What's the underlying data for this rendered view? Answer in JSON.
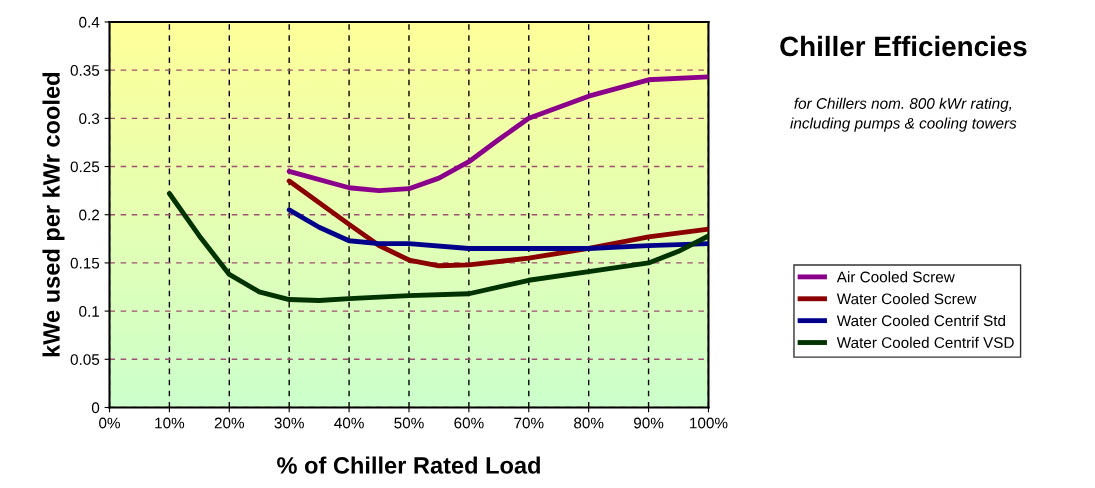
{
  "chart_data": {
    "type": "line",
    "title": "Chiller Efficiencies",
    "subtitle": "for Chillers nom. 800 kWr rating,\nincluding pumps & cooling towers",
    "xlabel": "% of Chiller Rated Load",
    "ylabel": "kWe used per kWr cooled",
    "xlim": [
      0,
      100
    ],
    "xticks": [
      {
        "value": 0,
        "label": "0%"
      },
      {
        "value": 10,
        "label": "10%"
      },
      {
        "value": 20,
        "label": "20%"
      },
      {
        "value": 30,
        "label": "30%"
      },
      {
        "value": 40,
        "label": "40%"
      },
      {
        "value": 50,
        "label": "50%"
      },
      {
        "value": 60,
        "label": "60%"
      },
      {
        "value": 70,
        "label": "70%"
      },
      {
        "value": 80,
        "label": "80%"
      },
      {
        "value": 90,
        "label": "90%"
      },
      {
        "value": 100,
        "label": "100%"
      }
    ],
    "ylim": [
      0,
      0.4
    ],
    "yticks": [
      0,
      0.05,
      0.1,
      0.15,
      0.2,
      0.25,
      0.3,
      0.35,
      0.4
    ],
    "grid": true,
    "legend": "right",
    "marker": "none",
    "line_style": "solid",
    "series": [
      {
        "name": "Air Cooled Screw",
        "color": "#8b008b",
        "x": [
          30,
          40,
          45,
          50,
          55,
          60,
          65,
          70,
          80,
          90,
          100
        ],
        "values": [
          0.245,
          0.228,
          0.225,
          0.227,
          0.238,
          0.255,
          0.278,
          0.3,
          0.323,
          0.34,
          0.343
        ]
      },
      {
        "name": "Water Cooled Screw",
        "color": "#8b0000",
        "x": [
          30,
          40,
          45,
          50,
          55,
          60,
          70,
          80,
          90,
          100
        ],
        "values": [
          0.235,
          0.19,
          0.168,
          0.153,
          0.147,
          0.148,
          0.155,
          0.165,
          0.177,
          0.185
        ]
      },
      {
        "name": "Water Cooled Centrif Std",
        "color": "#00008b",
        "x": [
          30,
          35,
          40,
          45,
          50,
          60,
          70,
          80,
          90,
          100
        ],
        "values": [
          0.205,
          0.187,
          0.173,
          0.17,
          0.17,
          0.165,
          0.165,
          0.165,
          0.168,
          0.17
        ]
      },
      {
        "name": "Water Cooled Centrif VSD",
        "color": "#003300",
        "x": [
          10,
          15,
          20,
          25,
          30,
          35,
          40,
          50,
          60,
          70,
          80,
          90,
          95,
          100
        ],
        "values": [
          0.222,
          0.178,
          0.138,
          0.12,
          0.112,
          0.111,
          0.113,
          0.116,
          0.118,
          0.132,
          0.141,
          0.15,
          0.162,
          0.178
        ]
      }
    ]
  }
}
